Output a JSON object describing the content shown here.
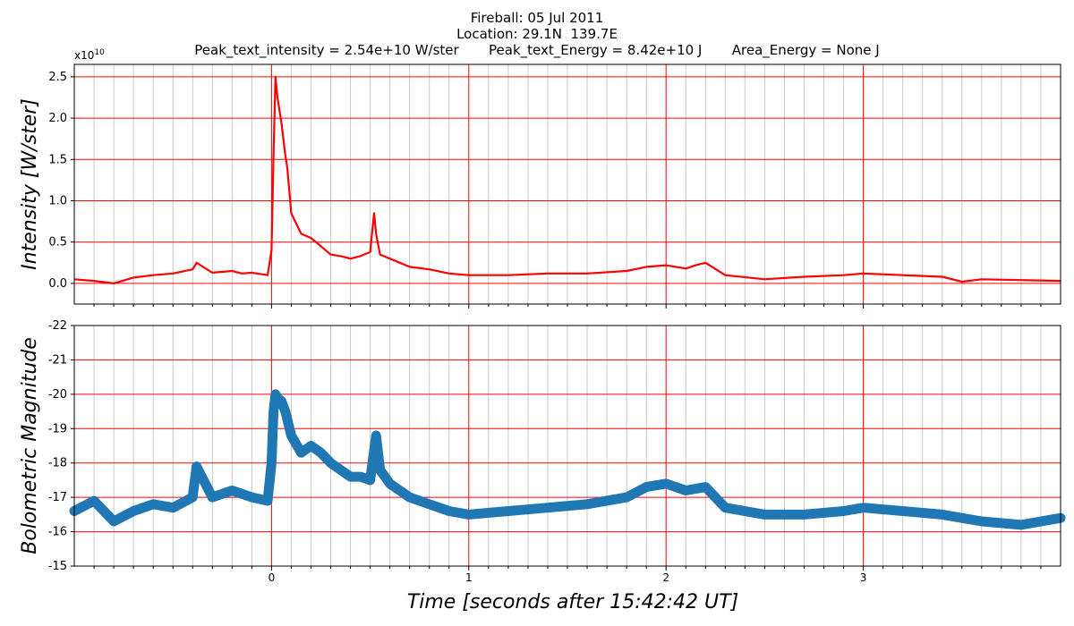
{
  "figure": {
    "title_lines": [
      "Fireball: 05 Jul 2011",
      "Location: 29.1N  139.7E",
      "Peak_text_intensity = 2.54e+10 W/ster       Peak_text_Energy = 8.42e+10 J       Area_Energy = None J"
    ],
    "xlabel": "Time [seconds after 15:42:42 UT]"
  },
  "chart_data": [
    {
      "type": "line",
      "ylabel": "Intensity [W/ster]",
      "offset_text": "x10",
      "offset_exponent": "10",
      "xlim": [
        -1.0,
        4.0
      ],
      "ylim": [
        -0.25,
        2.65
      ],
      "x_ticks": [
        0,
        1,
        2,
        3
      ],
      "x_tick_labels": [
        "",
        "",
        "",
        ""
      ],
      "y_ticks": [
        0.0,
        0.5,
        1.0,
        1.5,
        2.0,
        2.5
      ],
      "y_tick_labels": [
        "0.0",
        "0.5",
        "1.0",
        "1.5",
        "2.0",
        "2.5"
      ],
      "grid": true,
      "colors": {
        "line": "#ff0000",
        "major_grid": "#ff0000",
        "minor_grid": "#c8c8c8"
      },
      "series": [
        {
          "x": [
            -1.0,
            -0.9,
            -0.8,
            -0.7,
            -0.6,
            -0.5,
            -0.4,
            -0.38,
            -0.3,
            -0.2,
            -0.15,
            -0.1,
            -0.02,
            0.0,
            0.01,
            0.02,
            0.03,
            0.05,
            0.07,
            0.08,
            0.1,
            0.12,
            0.15,
            0.2,
            0.25,
            0.3,
            0.35,
            0.4,
            0.45,
            0.5,
            0.52,
            0.53,
            0.55,
            0.6,
            0.7,
            0.8,
            0.9,
            1.0,
            1.2,
            1.4,
            1.6,
            1.8,
            1.9,
            2.0,
            2.05,
            2.1,
            2.15,
            2.2,
            2.3,
            2.5,
            2.7,
            2.9,
            3.0,
            3.2,
            3.4,
            3.5,
            3.6,
            3.8,
            4.0
          ],
          "y": [
            0.05,
            0.03,
            0.0,
            0.07,
            0.1,
            0.12,
            0.17,
            0.25,
            0.13,
            0.15,
            0.12,
            0.13,
            0.1,
            0.4,
            1.55,
            2.5,
            2.25,
            1.95,
            1.55,
            1.4,
            0.85,
            0.75,
            0.6,
            0.55,
            0.45,
            0.35,
            0.33,
            0.3,
            0.33,
            0.38,
            0.85,
            0.6,
            0.35,
            0.3,
            0.2,
            0.17,
            0.12,
            0.1,
            0.1,
            0.12,
            0.12,
            0.15,
            0.2,
            0.22,
            0.2,
            0.18,
            0.22,
            0.25,
            0.1,
            0.05,
            0.08,
            0.1,
            0.12,
            0.1,
            0.08,
            0.02,
            0.05,
            0.04,
            0.03
          ]
        }
      ]
    },
    {
      "type": "line",
      "ylabel": "Bolometric Magnitude",
      "xlim": [
        -1.0,
        4.0
      ],
      "ylim": [
        -15,
        -22
      ],
      "x_ticks": [
        0,
        1,
        2,
        3
      ],
      "x_tick_labels": [
        "0",
        "1",
        "2",
        "3"
      ],
      "y_ticks": [
        -15,
        -16,
        -17,
        -18,
        -19,
        -20,
        -21,
        -22
      ],
      "y_tick_labels": [
        "-15",
        "-16",
        "-17",
        "-18",
        "-19",
        "-20",
        "-21",
        "-22"
      ],
      "grid": true,
      "colors": {
        "line": "#1f77b4",
        "major_grid": "#ff0000",
        "minor_grid": "#c8c8c8"
      },
      "series": [
        {
          "x": [
            -1.0,
            -0.9,
            -0.8,
            -0.7,
            -0.6,
            -0.5,
            -0.4,
            -0.38,
            -0.3,
            -0.2,
            -0.1,
            -0.02,
            0.0,
            0.01,
            0.02,
            0.03,
            0.05,
            0.07,
            0.1,
            0.15,
            0.2,
            0.25,
            0.3,
            0.35,
            0.4,
            0.45,
            0.5,
            0.53,
            0.55,
            0.6,
            0.7,
            0.8,
            0.9,
            1.0,
            1.2,
            1.4,
            1.6,
            1.8,
            1.9,
            2.0,
            2.1,
            2.2,
            2.3,
            2.5,
            2.7,
            2.9,
            3.0,
            3.2,
            3.4,
            3.6,
            3.8,
            4.0
          ],
          "y": [
            -16.6,
            -16.9,
            -16.3,
            -16.6,
            -16.8,
            -16.7,
            -17.0,
            -17.9,
            -17.0,
            -17.2,
            -17.0,
            -16.9,
            -18.0,
            -19.5,
            -20.0,
            -19.9,
            -19.8,
            -19.5,
            -18.8,
            -18.3,
            -18.5,
            -18.3,
            -18.0,
            -17.8,
            -17.6,
            -17.6,
            -17.5,
            -18.8,
            -17.8,
            -17.4,
            -17.0,
            -16.8,
            -16.6,
            -16.5,
            -16.6,
            -16.7,
            -16.8,
            -17.0,
            -17.3,
            -17.4,
            -17.2,
            -17.3,
            -16.7,
            -16.5,
            -16.5,
            -16.6,
            -16.7,
            -16.6,
            -16.5,
            -16.3,
            -16.2,
            -16.4
          ]
        }
      ]
    }
  ]
}
